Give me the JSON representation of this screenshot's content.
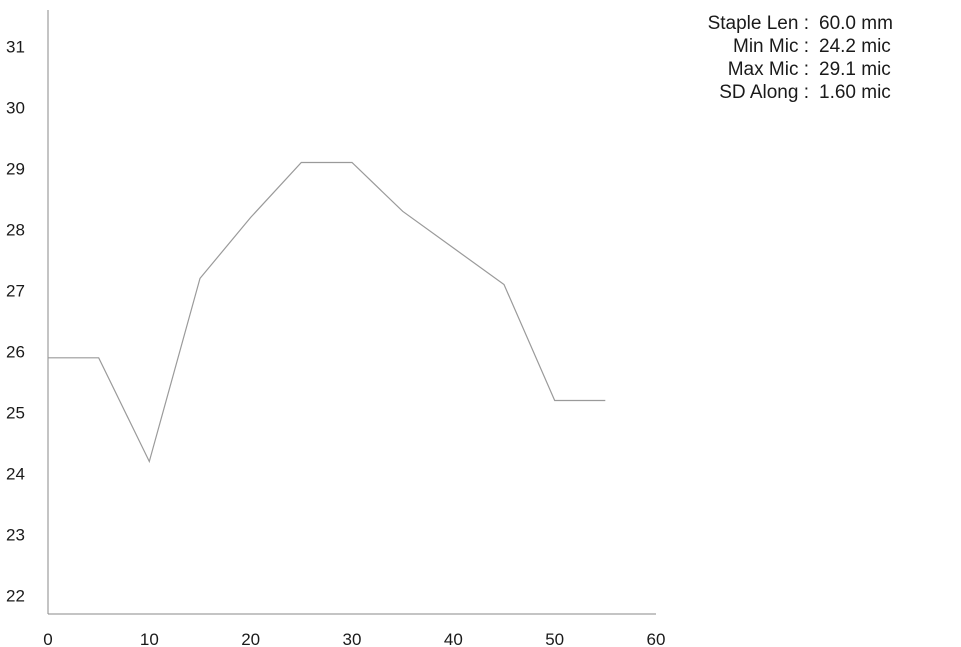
{
  "chart_data": {
    "type": "line",
    "title": "",
    "xlabel": "",
    "ylabel": "",
    "xlim": [
      0,
      60
    ],
    "ylim": [
      21.7,
      31.6
    ],
    "x_ticks": [
      0,
      10,
      20,
      30,
      40,
      50,
      60
    ],
    "y_ticks": [
      22,
      23,
      24,
      25,
      26,
      27,
      28,
      29,
      30,
      31
    ],
    "grid": false,
    "line_color": "#9a9a9a",
    "axis_color": "#8a8a8a",
    "series": [
      {
        "x": [
          0,
          5,
          10,
          15,
          20,
          25,
          30,
          35,
          40,
          45,
          50,
          55
        ],
        "y": [
          25.9,
          25.9,
          24.2,
          27.2,
          28.2,
          29.1,
          29.1,
          28.3,
          27.7,
          27.1,
          25.2,
          25.2
        ]
      }
    ]
  },
  "stats": [
    {
      "label": "Staple Len :",
      "value": "60.0 mm"
    },
    {
      "label": "Min Mic :",
      "value": "24.2 mic"
    },
    {
      "label": "Max Mic :",
      "value": "29.1 mic"
    },
    {
      "label": "SD Along :",
      "value": "1.60 mic"
    }
  ]
}
